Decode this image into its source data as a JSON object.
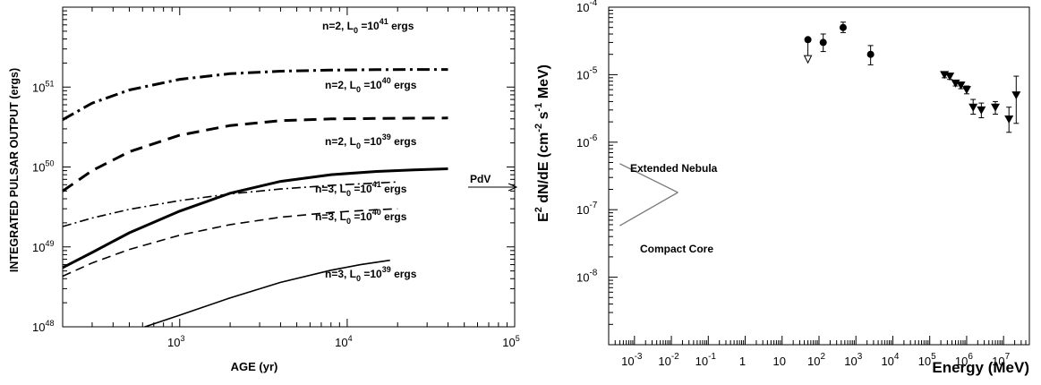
{
  "chart_data": [
    {
      "type": "line",
      "title": "",
      "xlabel": "AGE (yr)",
      "ylabel": "INTEGRATED PULSAR OUTPUT (ergs)",
      "xscale": "log",
      "yscale": "log",
      "xlim": [
        200,
        100000
      ],
      "ylim": [
        1e+48,
        1e+52
      ],
      "xticks": [
        {
          "value": 1000,
          "base": "10",
          "exp": "3"
        },
        {
          "value": 10000,
          "base": "10",
          "exp": "4"
        },
        {
          "value": 100000,
          "base": "10",
          "exp": "5"
        }
      ],
      "yticks": [
        {
          "value": 1e+48,
          "base": "10",
          "exp": "48"
        },
        {
          "value": 1e+49,
          "base": "10",
          "exp": "49"
        },
        {
          "value": 1e+50,
          "base": "10",
          "exp": "50"
        },
        {
          "value": 1e+51,
          "base": "10",
          "exp": "51"
        }
      ],
      "grid": false,
      "series": [
        {
          "label": {
            "pre": "n=2, L",
            "sub": "0",
            "mid": " =10",
            "sup": "41",
            "post": " ergs"
          },
          "style": "dashdot-thick",
          "x": [
            200,
            300,
            500,
            1000,
            2000,
            4000,
            8000,
            15000,
            25000,
            40000
          ],
          "y": [
            3.9e+50,
            6.3e+50,
            9.2e+50,
            1.25e+51,
            1.47e+51,
            1.58e+51,
            1.63e+51,
            1.65e+51,
            1.66e+51,
            1.66e+51
          ]
        },
        {
          "label": {
            "pre": "n=2, L",
            "sub": "0",
            "mid": " =10",
            "sup": "40",
            "post": " ergs"
          },
          "style": "dashed-thick",
          "x": [
            200,
            300,
            500,
            1000,
            2000,
            4000,
            8000,
            15000,
            25000,
            40000
          ],
          "y": [
            5e+49,
            9e+49,
            1.55e+50,
            2.5e+50,
            3.3e+50,
            3.8e+50,
            4e+50,
            4.05e+50,
            4.08e+50,
            4.1e+50
          ]
        },
        {
          "label": {
            "pre": "n=2, L",
            "sub": "0",
            "mid": " =10",
            "sup": "39",
            "post": " ergs"
          },
          "style": "solid-thick",
          "x": [
            200,
            300,
            500,
            1000,
            2000,
            4000,
            8000,
            15000,
            25000,
            40000
          ],
          "y": [
            5.5e+48,
            8.5e+48,
            1.5e+49,
            2.8e+49,
            4.7e+49,
            6.6e+49,
            8e+49,
            8.8e+49,
            9.2e+49,
            9.5e+49
          ]
        },
        {
          "label": {
            "pre": "n=3, L",
            "sub": "0",
            "mid": " =10",
            "sup": "41",
            "post": " ergs"
          },
          "style": "dashdot-thin",
          "x": [
            200,
            300,
            500,
            1000,
            2000,
            4000,
            8000,
            15000,
            20000
          ],
          "y": [
            1.8e+49,
            2.3e+49,
            2.95e+49,
            3.8e+49,
            4.6e+49,
            5.3e+49,
            5.9e+49,
            6.3e+49,
            6.5e+49
          ]
        },
        {
          "label": {
            "pre": "n=3, L",
            "sub": "0",
            "mid": " =10",
            "sup": "40",
            "post": " ergs"
          },
          "style": "dashed-thin",
          "x": [
            200,
            300,
            500,
            1000,
            2000,
            4000,
            8000,
            15000,
            20000
          ],
          "y": [
            4.3e+48,
            6.3e+48,
            9.3e+48,
            1.4e+49,
            1.9e+49,
            2.35e+49,
            2.7e+49,
            2.92e+49,
            3e+49
          ]
        },
        {
          "label": {
            "pre": "n=3, L",
            "sub": "0",
            "mid": " =10",
            "sup": "39",
            "post": " ergs"
          },
          "style": "solid-thin",
          "x": [
            620,
            1000,
            2000,
            4000,
            8000,
            12000,
            18000
          ],
          "y": [
            1e+48,
            1.4e+48,
            2.3e+48,
            3.6e+48,
            5.1e+48,
            6e+48,
            6.8e+48
          ]
        }
      ],
      "annotations": [
        {
          "text": "PdV",
          "arrow": "right"
        }
      ]
    },
    {
      "type": "scatter",
      "title": "",
      "xlabel": "Energy (MeV)",
      "ylabel": {
        "base": "E",
        "e2": "2",
        "mid": " dN/dE  (cm",
        "em2": "-2",
        "s": " s",
        "em1": "-1",
        "end": " MeV)"
      },
      "xscale": "log",
      "yscale": "log",
      "xlim": [
        0.0002,
        50000000
      ],
      "ylim": [
        1e-09,
        0.0001
      ],
      "xtick_labels": [
        {
          "value": 0.001,
          "base": "10",
          "exp": "-3"
        },
        {
          "value": 0.01,
          "base": "10",
          "exp": "-2"
        },
        {
          "value": 0.1,
          "base": "10",
          "exp": "-1"
        },
        {
          "value": 1,
          "base": "1",
          "exp": ""
        },
        {
          "value": 10,
          "base": "10",
          "exp": ""
        },
        {
          "value": 100,
          "base": "10",
          "exp": "2"
        },
        {
          "value": 1000,
          "base": "10",
          "exp": "3"
        },
        {
          "value": 10000,
          "base": "10",
          "exp": "4"
        },
        {
          "value": 100000,
          "base": "10",
          "exp": "5"
        },
        {
          "value": 1000000,
          "base": "10",
          "exp": "6"
        },
        {
          "value": 10000000,
          "base": "10",
          "exp": "7"
        }
      ],
      "ytick_labels": [
        {
          "value": 1e-08,
          "base": "10",
          "exp": "-8"
        },
        {
          "value": 1e-07,
          "base": "10",
          "exp": "-7"
        },
        {
          "value": 1e-06,
          "base": "10",
          "exp": "-6"
        },
        {
          "value": 1e-05,
          "base": "10",
          "exp": "-5"
        },
        {
          "value": 0.0001,
          "base": "10",
          "exp": "-4"
        }
      ],
      "grid": false,
      "series": [
        {
          "marker": "circle",
          "points": [
            {
              "x": 50,
              "y": 3.3e-05,
              "ylo": 1.5e-05,
              "yhi": 3.3e-05,
              "upper_limit": true
            },
            {
              "x": 130,
              "y": 3e-05,
              "ylo": 2.2e-05,
              "yhi": 4e-05
            },
            {
              "x": 450,
              "y": 5e-05,
              "ylo": 4.2e-05,
              "yhi": 6e-05
            },
            {
              "x": 2500,
              "y": 2e-05,
              "ylo": 1.4e-05,
              "yhi": 2.7e-05
            }
          ]
        },
        {
          "marker": "triangle-down",
          "points": [
            {
              "x": 250000,
              "y": 1e-05,
              "ylo": 9e-06,
              "yhi": 1.1e-05
            },
            {
              "x": 350000,
              "y": 9.5e-06,
              "ylo": 8.5e-06,
              "yhi": 1.05e-05
            },
            {
              "x": 500000,
              "y": 7.5e-06,
              "ylo": 6.8e-06,
              "yhi": 8.2e-06
            },
            {
              "x": 700000,
              "y": 7e-06,
              "ylo": 6.2e-06,
              "yhi": 7.8e-06
            },
            {
              "x": 1000000,
              "y": 6e-06,
              "ylo": 5.2e-06,
              "yhi": 6.8e-06
            },
            {
              "x": 1500000,
              "y": 3.3e-06,
              "ylo": 2.6e-06,
              "yhi": 4.3e-06
            },
            {
              "x": 2500000,
              "y": 3e-06,
              "ylo": 2.3e-06,
              "yhi": 3.8e-06
            },
            {
              "x": 6000000,
              "y": 3.3e-06,
              "ylo": 2.6e-06,
              "yhi": 4e-06
            },
            {
              "x": 14000000,
              "y": 2.2e-06,
              "ylo": 1.4e-06,
              "yhi": 3.3e-06
            },
            {
              "x": 22000000,
              "y": 5e-06,
              "ylo": 1.9e-06,
              "yhi": 9.5e-06
            }
          ]
        }
      ],
      "annotations": [
        {
          "text": "Extended Nebula",
          "x": 0.0004,
          "y": 5e-07
        },
        {
          "text": "Compact Core",
          "x": 0.0004,
          "y": 5.5e-08
        }
      ]
    }
  ]
}
